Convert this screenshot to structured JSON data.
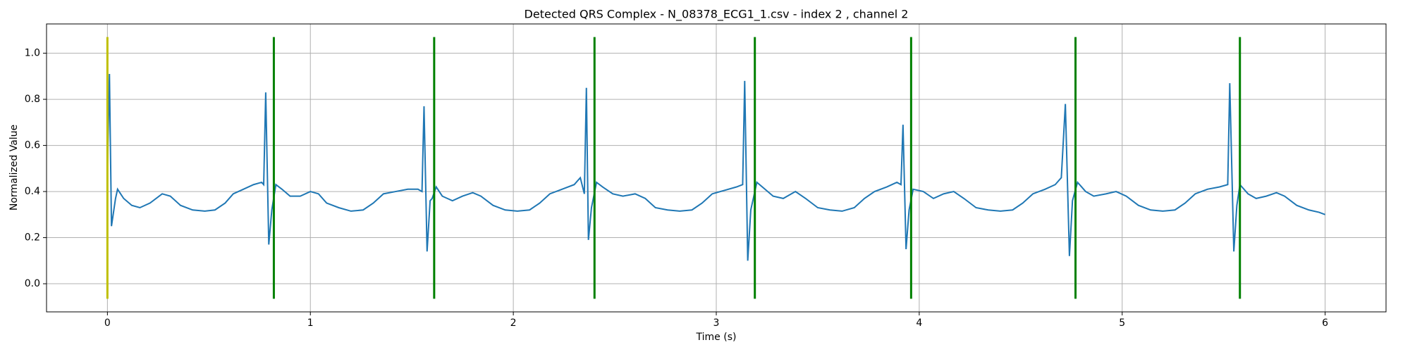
{
  "chart_data": {
    "type": "line",
    "title": "Detected QRS Complex - N_08378_ECG1_1.csv - index 2 , channel 2",
    "x_label": "Time (s)",
    "y_label": "Normalized Value",
    "x": [
      0.0,
      0.01,
      0.02,
      0.04,
      0.05,
      0.08,
      0.12,
      0.16,
      0.21,
      0.27,
      0.31,
      0.36,
      0.42,
      0.48,
      0.53,
      0.58,
      0.62,
      0.67,
      0.72,
      0.76,
      0.77,
      0.78,
      0.795,
      0.81,
      0.83,
      0.86,
      0.9,
      0.95,
      1.0,
      1.04,
      1.08,
      1.14,
      1.2,
      1.26,
      1.31,
      1.36,
      1.42,
      1.48,
      1.53,
      1.55,
      1.56,
      1.575,
      1.59,
      1.6,
      1.62,
      1.65,
      1.7,
      1.75,
      1.8,
      1.84,
      1.9,
      1.96,
      2.02,
      2.08,
      2.13,
      2.18,
      2.24,
      2.3,
      2.33,
      2.35,
      2.36,
      2.37,
      2.385,
      2.41,
      2.44,
      2.49,
      2.54,
      2.6,
      2.65,
      2.7,
      2.76,
      2.82,
      2.88,
      2.93,
      2.98,
      3.04,
      3.1,
      3.13,
      3.14,
      3.155,
      3.17,
      3.2,
      3.24,
      3.28,
      3.33,
      3.39,
      3.44,
      3.5,
      3.56,
      3.62,
      3.68,
      3.73,
      3.78,
      3.84,
      3.89,
      3.91,
      3.92,
      3.935,
      3.95,
      3.97,
      4.02,
      4.07,
      4.12,
      4.17,
      4.22,
      4.28,
      4.34,
      4.4,
      4.46,
      4.51,
      4.56,
      4.62,
      4.67,
      4.7,
      4.72,
      4.74,
      4.755,
      4.78,
      4.82,
      4.86,
      4.92,
      4.97,
      5.02,
      5.08,
      5.14,
      5.2,
      5.26,
      5.31,
      5.36,
      5.42,
      5.48,
      5.52,
      5.53,
      5.55,
      5.565,
      5.58,
      5.62,
      5.66,
      5.71,
      5.76,
      5.8,
      5.86,
      5.92,
      5.97,
      6.0
    ],
    "series": [
      {
        "color": "#1f77b4",
        "values": [
          0.5,
          0.91,
          0.25,
          0.37,
          0.41,
          0.37,
          0.34,
          0.33,
          0.35,
          0.39,
          0.38,
          0.34,
          0.32,
          0.315,
          0.32,
          0.35,
          0.39,
          0.41,
          0.43,
          0.44,
          0.43,
          0.83,
          0.17,
          0.32,
          0.43,
          0.41,
          0.38,
          0.38,
          0.4,
          0.39,
          0.35,
          0.33,
          0.315,
          0.32,
          0.35,
          0.39,
          0.4,
          0.41,
          0.41,
          0.4,
          0.77,
          0.14,
          0.36,
          0.37,
          0.42,
          0.38,
          0.36,
          0.38,
          0.395,
          0.38,
          0.34,
          0.32,
          0.315,
          0.32,
          0.35,
          0.39,
          0.41,
          0.43,
          0.46,
          0.39,
          0.85,
          0.19,
          0.33,
          0.44,
          0.42,
          0.39,
          0.38,
          0.39,
          0.37,
          0.33,
          0.32,
          0.315,
          0.32,
          0.35,
          0.39,
          0.405,
          0.42,
          0.43,
          0.88,
          0.1,
          0.32,
          0.44,
          0.41,
          0.38,
          0.37,
          0.4,
          0.37,
          0.33,
          0.32,
          0.315,
          0.33,
          0.37,
          0.4,
          0.42,
          0.44,
          0.43,
          0.69,
          0.15,
          0.32,
          0.41,
          0.4,
          0.37,
          0.39,
          0.4,
          0.37,
          0.33,
          0.32,
          0.315,
          0.32,
          0.35,
          0.39,
          0.41,
          0.43,
          0.46,
          0.78,
          0.12,
          0.36,
          0.44,
          0.4,
          0.38,
          0.39,
          0.4,
          0.38,
          0.34,
          0.32,
          0.315,
          0.32,
          0.35,
          0.39,
          0.41,
          0.42,
          0.43,
          0.87,
          0.14,
          0.34,
          0.43,
          0.39,
          0.37,
          0.38,
          0.395,
          0.38,
          0.34,
          0.32,
          0.31,
          0.3
        ]
      }
    ],
    "detections": {
      "x": [
        0,
        0.82,
        1.61,
        2.4,
        3.19,
        3.96,
        4.77,
        5.58
      ],
      "colors": [
        "#bfbf00",
        "#008000",
        "#008000",
        "#008000",
        "#008000",
        "#008000",
        "#008000",
        "#008000"
      ],
      "ymin": -0.065,
      "ymax": 1.07
    },
    "xlim": [
      -0.3,
      6.3
    ],
    "ylim": [
      -0.122,
      1.127
    ],
    "xticks": [
      0,
      1,
      2,
      3,
      4,
      5,
      6
    ],
    "yticks": [
      {
        "value": 0,
        "label": "0.0"
      },
      0.2,
      0.4,
      0.6,
      0.8,
      {
        "value": 1,
        "label": "1.0"
      }
    ],
    "grid": true
  }
}
